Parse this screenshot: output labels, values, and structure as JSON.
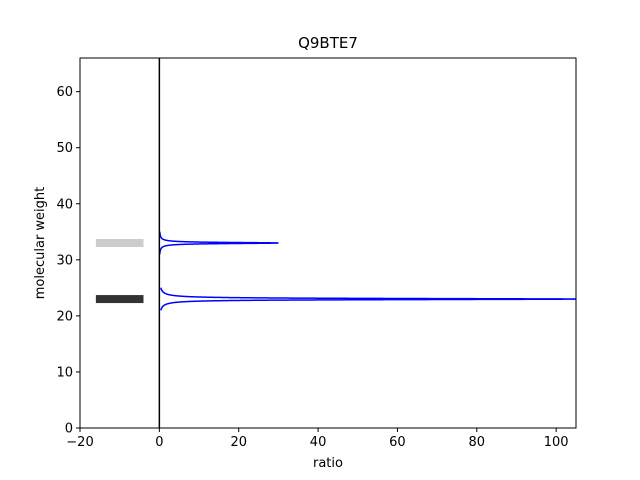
{
  "chart_data": {
    "type": "line",
    "title": "Q9BTE7",
    "xlabel": "ratio",
    "ylabel": "molecular weight",
    "xlim": [
      -20,
      105
    ],
    "ylim": [
      0,
      66
    ],
    "xticks": [
      -20,
      0,
      20,
      40,
      60,
      80,
      100
    ],
    "yticks": [
      0,
      10,
      20,
      30,
      40,
      50,
      60
    ],
    "xtick_labels": [
      "−20",
      "0",
      "20",
      "40",
      "60",
      "80",
      "100"
    ],
    "ytick_labels": [
      "0",
      "10",
      "20",
      "30",
      "40",
      "50",
      "60"
    ],
    "vertical_line_x": 0,
    "bands": [
      {
        "x": [
          -16,
          -4
        ],
        "y": 33,
        "color": "#cccccc"
      },
      {
        "x": [
          -16,
          -4
        ],
        "y": 23,
        "color": "#333333"
      }
    ],
    "peaks": [
      {
        "center": 33,
        "height": 30
      },
      {
        "center": 23,
        "height": 105
      }
    ],
    "line_color": "#0000ff",
    "grid": false
  }
}
